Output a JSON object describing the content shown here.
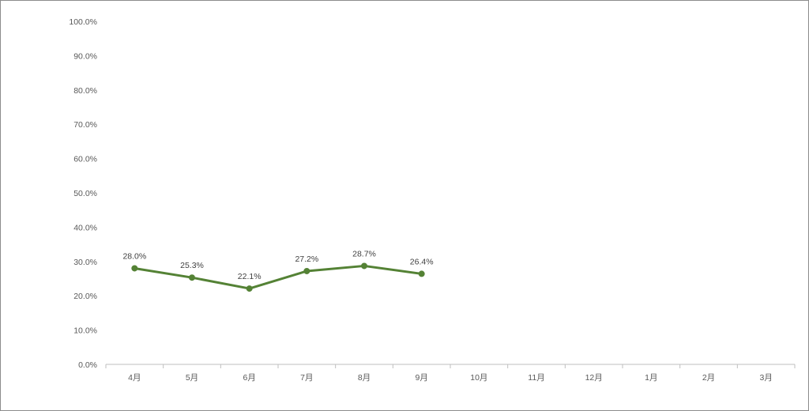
{
  "chart_data": {
    "type": "line",
    "categories": [
      "4月",
      "5月",
      "6月",
      "7月",
      "8月",
      "9月",
      "10月",
      "11月",
      "12月",
      "1月",
      "2月",
      "3月"
    ],
    "series": [
      {
        "values": [
          28.0,
          25.3,
          22.1,
          27.2,
          28.7,
          26.4,
          null,
          null,
          null,
          null,
          null,
          null
        ],
        "labels": [
          "28.0%",
          "25.3%",
          "22.1%",
          "27.2%",
          "28.7%",
          "26.4%"
        ],
        "color": "#548235"
      }
    ],
    "ylim": [
      0,
      100
    ],
    "yticks": [
      "0.0%",
      "10.0%",
      "20.0%",
      "30.0%",
      "40.0%",
      "50.0%",
      "60.0%",
      "70.0%",
      "80.0%",
      "90.0%",
      "100.0%"
    ],
    "grid": false,
    "title": "",
    "xlabel": "",
    "ylabel": ""
  }
}
